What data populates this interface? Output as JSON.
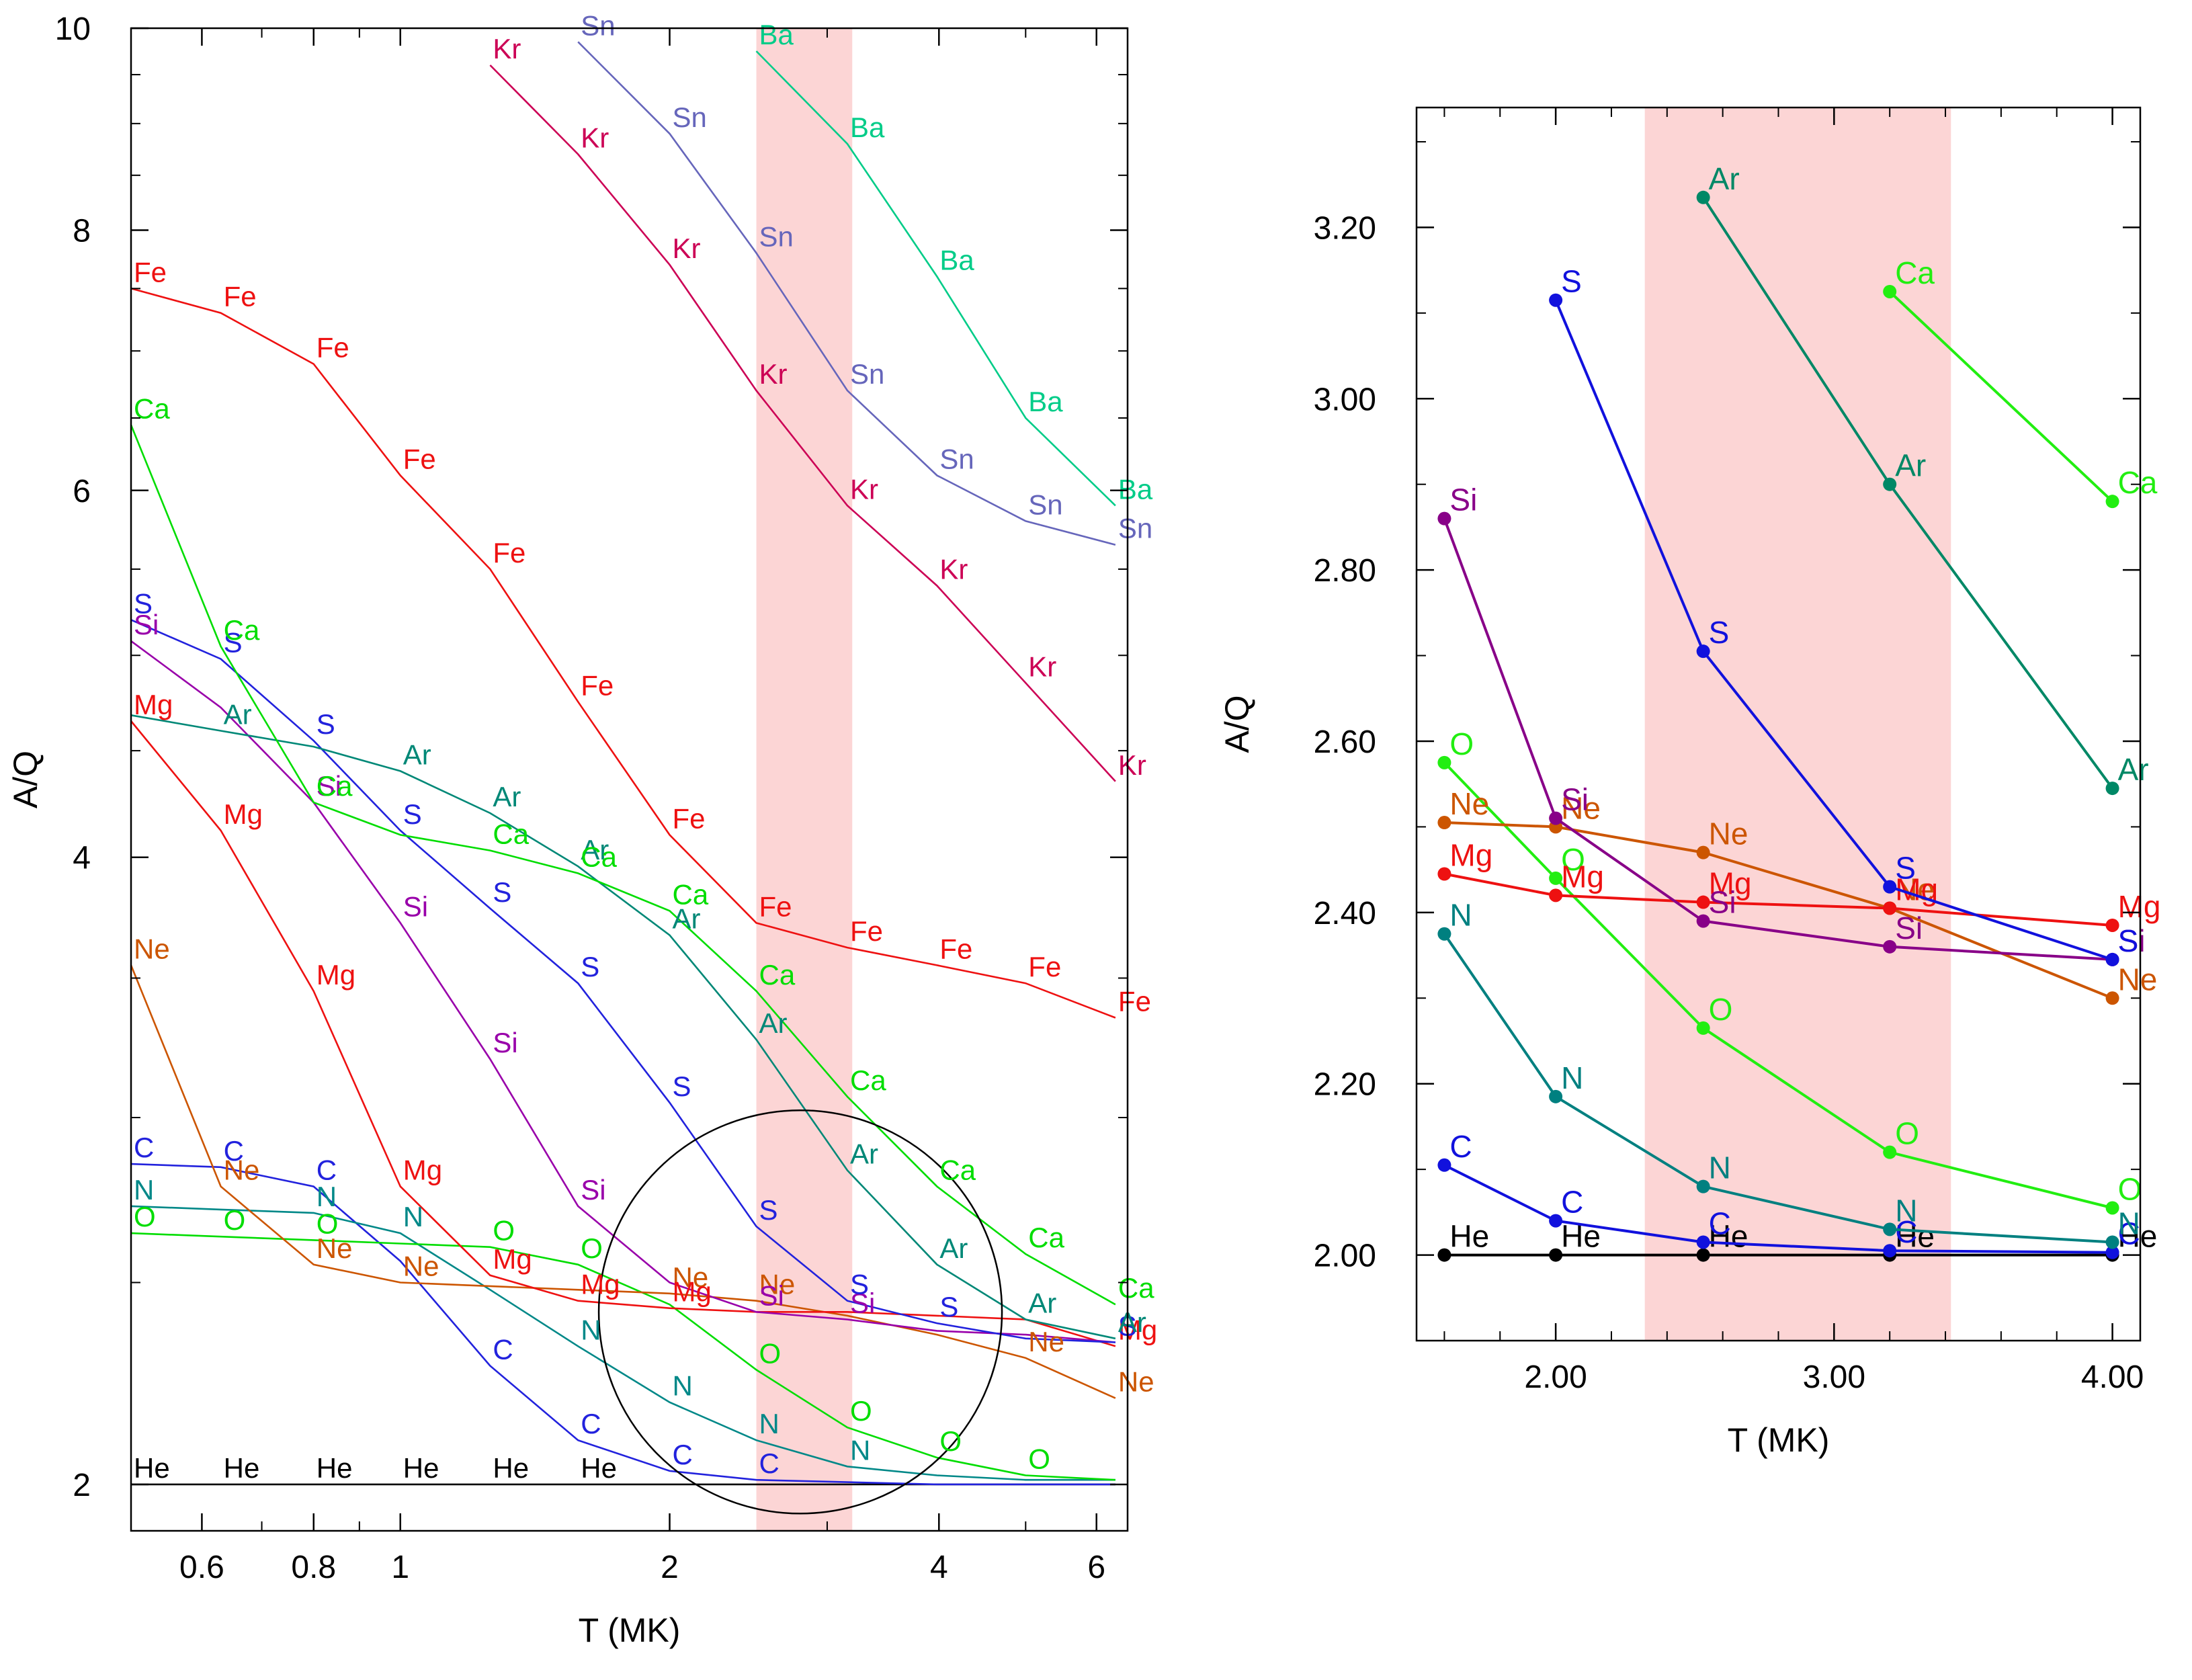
{
  "chart_data": [
    {
      "type": "line",
      "xlabel": "T (MK)",
      "ylabel": "A/Q",
      "x_scale": "log",
      "y_scale": "log",
      "xlim": [
        0.5,
        6.5
      ],
      "ylim": [
        1.9,
        10
      ],
      "x_ticks": [
        {
          "value": 0.6,
          "label": "0.6"
        },
        {
          "value": 0.8,
          "label": "0.8"
        },
        {
          "value": 1,
          "label": "1"
        },
        {
          "value": 2,
          "label": "2"
        },
        {
          "value": 4,
          "label": "4"
        },
        {
          "value": 6,
          "label": "6"
        }
      ],
      "y_ticks": [
        {
          "value": 2,
          "label": "2"
        },
        {
          "value": 4,
          "label": "4"
        },
        {
          "value": 6,
          "label": "6"
        },
        {
          "value": 8,
          "label": "8"
        },
        {
          "value": 10,
          "label": "10"
        }
      ],
      "shaded_band": {
        "x": [
          2.5,
          3.2
        ],
        "color": "#fcd5d5"
      },
      "circle": {
        "center": [
          2.8,
          2.42
        ],
        "color": "#000000"
      },
      "x": [
        0.5,
        0.63,
        0.8,
        1.0,
        1.26,
        1.58,
        2.0,
        2.5,
        3.16,
        3.98,
        5.0,
        6.3
      ],
      "series": [
        {
          "name": "He",
          "color": "#000000",
          "values": [
            2.0,
            2.0,
            2.0,
            2.0,
            2.0,
            2.0,
            2.0,
            2.0,
            2.0,
            2.0,
            2.0,
            2.0
          ]
        },
        {
          "name": "C",
          "color": "#2222dd",
          "values": [
            2.85,
            2.84,
            2.78,
            2.56,
            2.28,
            2.1,
            2.03,
            2.01,
            2.005,
            2.0,
            2.0,
            2.0
          ]
        },
        {
          "name": "N",
          "color": "#008888",
          "values": [
            2.72,
            2.71,
            2.7,
            2.64,
            2.48,
            2.33,
            2.19,
            2.1,
            2.04,
            2.02,
            2.01,
            2.01
          ]
        },
        {
          "name": "O",
          "color": "#00dd00",
          "values": [
            2.64,
            2.63,
            2.62,
            2.61,
            2.6,
            2.55,
            2.44,
            2.27,
            2.13,
            2.06,
            2.02,
            2.01
          ]
        },
        {
          "name": "Ne",
          "color": "#cc5500",
          "values": [
            3.55,
            2.78,
            2.55,
            2.5,
            2.49,
            2.48,
            2.47,
            2.45,
            2.41,
            2.36,
            2.3,
            2.2
          ]
        },
        {
          "name": "Mg",
          "color": "#ee1111",
          "values": [
            4.65,
            4.12,
            3.45,
            2.78,
            2.52,
            2.45,
            2.43,
            2.42,
            2.42,
            2.41,
            2.4,
            2.33
          ]
        },
        {
          "name": "Si",
          "color": "#9900aa",
          "values": [
            5.08,
            4.72,
            4.25,
            3.72,
            3.2,
            2.72,
            2.5,
            2.42,
            2.4,
            2.37,
            2.36,
            2.34
          ]
        },
        {
          "name": "S",
          "color": "#2222dd",
          "values": [
            5.2,
            4.98,
            4.55,
            4.12,
            3.78,
            3.48,
            3.05,
            2.66,
            2.45,
            2.39,
            2.35,
            2.34
          ]
        },
        {
          "name": "Ar",
          "color": "#008877",
          "values": [
            4.68,
            4.6,
            4.52,
            4.4,
            4.2,
            3.96,
            3.67,
            3.27,
            2.83,
            2.55,
            2.4,
            2.35
          ]
        },
        {
          "name": "Ca",
          "color": "#00dd00",
          "values": [
            6.45,
            5.05,
            4.25,
            4.1,
            4.03,
            3.93,
            3.77,
            3.45,
            3.07,
            2.78,
            2.58,
            2.44
          ]
        },
        {
          "name": "Fe",
          "color": "#ee1111",
          "values": [
            7.5,
            7.3,
            6.9,
            6.1,
            5.5,
            4.75,
            4.1,
            3.72,
            3.62,
            3.55,
            3.48,
            3.35
          ]
        },
        {
          "name": "Kr",
          "color": "#cc0055",
          "values": [
            null,
            null,
            null,
            null,
            9.6,
            8.7,
            7.7,
            6.7,
            5.9,
            5.4,
            4.85,
            4.35
          ]
        },
        {
          "name": "Sn",
          "color": "#6666bb",
          "values": [
            null,
            null,
            null,
            null,
            null,
            9.85,
            8.9,
            7.8,
            6.7,
            6.1,
            5.8,
            5.65
          ]
        },
        {
          "name": "Ba",
          "color": "#00cc88",
          "values": [
            null,
            null,
            null,
            null,
            null,
            null,
            null,
            9.75,
            8.8,
            7.6,
            6.5,
            5.9
          ]
        }
      ],
      "point_labels": [
        {
          "series": "He",
          "x": [
            0.5,
            0.63,
            0.8,
            1.0,
            1.26,
            1.58
          ],
          "y": [
            2.0,
            2.0,
            2.0,
            2.0,
            2.0,
            2.0
          ]
        },
        {
          "series": "C",
          "x": [
            0.5,
            0.63,
            0.8,
            1.26,
            1.58,
            2.0,
            2.5
          ],
          "y": [
            2.85,
            2.84,
            2.78,
            2.28,
            2.1,
            2.03,
            2.01
          ]
        },
        {
          "series": "N",
          "x": [
            0.5,
            0.8,
            1.0,
            1.58,
            2.0,
            2.5,
            3.16
          ],
          "y": [
            2.72,
            2.7,
            2.64,
            2.33,
            2.19,
            2.1,
            2.04
          ]
        },
        {
          "series": "O",
          "x": [
            0.5,
            0.63,
            0.8,
            1.26,
            1.58,
            2.5,
            3.16,
            3.98,
            5.0
          ],
          "y": [
            2.64,
            2.63,
            2.62,
            2.6,
            2.55,
            2.27,
            2.13,
            2.06,
            2.02
          ]
        },
        {
          "series": "Ne",
          "x": [
            0.5,
            0.63,
            0.8,
            1.0,
            2.0,
            2.5,
            5.0,
            6.3
          ],
          "y": [
            3.55,
            2.78,
            2.55,
            2.5,
            2.47,
            2.45,
            2.3,
            2.2
          ]
        },
        {
          "series": "Mg",
          "x": [
            0.5,
            0.63,
            0.8,
            1.0,
            1.26,
            1.58,
            2.0,
            6.3
          ],
          "y": [
            4.65,
            4.12,
            3.45,
            2.78,
            2.52,
            2.45,
            2.43,
            2.33
          ]
        },
        {
          "series": "Si",
          "x": [
            0.5,
            0.8,
            1.0,
            1.26,
            1.58,
            2.5,
            3.16
          ],
          "y": [
            5.08,
            4.25,
            3.72,
            3.2,
            2.72,
            2.42,
            2.4
          ]
        },
        {
          "series": "S",
          "x": [
            0.5,
            0.63,
            0.8,
            1.0,
            1.26,
            1.58,
            2.0,
            2.5,
            3.16,
            3.98,
            6.3
          ],
          "y": [
            5.2,
            4.98,
            4.55,
            4.12,
            3.78,
            3.48,
            3.05,
            2.66,
            2.45,
            2.39,
            2.34
          ]
        },
        {
          "series": "Ar",
          "x": [
            0.63,
            1.0,
            1.26,
            1.58,
            2.0,
            2.5,
            3.16,
            3.98,
            5.0,
            6.3
          ],
          "y": [
            4.6,
            4.4,
            4.2,
            3.96,
            3.67,
            3.27,
            2.83,
            2.55,
            2.4,
            2.35
          ]
        },
        {
          "series": "Ca",
          "x": [
            0.5,
            0.63,
            0.8,
            1.26,
            1.58,
            2.0,
            2.5,
            3.16,
            3.98,
            5.0,
            6.3
          ],
          "y": [
            6.45,
            5.05,
            4.25,
            4.03,
            3.93,
            3.77,
            3.45,
            3.07,
            2.78,
            2.58,
            2.44
          ]
        },
        {
          "series": "Fe",
          "x": [
            0.5,
            0.63,
            0.8,
            1.0,
            1.26,
            1.58,
            2.0,
            2.5,
            3.16,
            3.98,
            5.0,
            6.3
          ],
          "y": [
            7.5,
            7.3,
            6.9,
            6.1,
            5.5,
            4.75,
            4.1,
            3.72,
            3.62,
            3.55,
            3.48,
            3.35
          ]
        },
        {
          "series": "Kr",
          "x": [
            1.26,
            1.58,
            2.0,
            2.5,
            3.16,
            3.98,
            5.0,
            6.3
          ],
          "y": [
            9.6,
            8.7,
            7.7,
            6.7,
            5.9,
            5.4,
            4.85,
            4.35
          ]
        },
        {
          "series": "Sn",
          "x": [
            1.58,
            2.0,
            2.5,
            3.16,
            3.98,
            5.0,
            6.3
          ],
          "y": [
            9.85,
            8.9,
            7.8,
            6.7,
            6.1,
            5.8,
            5.65
          ]
        },
        {
          "series": "Ba",
          "x": [
            2.5,
            3.16,
            3.98,
            5.0,
            6.3
          ],
          "y": [
            9.75,
            8.8,
            7.6,
            6.5,
            5.9
          ]
        }
      ]
    },
    {
      "type": "line",
      "xlabel": "T (MK)",
      "ylabel": "A/Q",
      "x_scale": "linear",
      "y_scale": "linear",
      "xlim": [
        1.5,
        4.1
      ],
      "ylim": [
        1.9,
        3.34
      ],
      "x_ticks": [
        {
          "value": 2.0,
          "label": "2.00"
        },
        {
          "value": 3.0,
          "label": "3.00"
        },
        {
          "value": 4.0,
          "label": "4.00"
        }
      ],
      "y_ticks": [
        {
          "value": 2.0,
          "label": "2.00"
        },
        {
          "value": 2.2,
          "label": "2.20"
        },
        {
          "value": 2.4,
          "label": "2.40"
        },
        {
          "value": 2.6,
          "label": "2.60"
        },
        {
          "value": 2.8,
          "label": "2.80"
        },
        {
          "value": 3.0,
          "label": "3.00"
        },
        {
          "value": 3.2,
          "label": "3.20"
        }
      ],
      "shaded_band": {
        "x": [
          2.32,
          3.42
        ],
        "color": "#fcd5d5"
      },
      "series": [
        {
          "name": "He",
          "color": "#000000",
          "points": [
            [
              1.6,
              2.0
            ],
            [
              2.0,
              2.0
            ],
            [
              2.53,
              2.0
            ],
            [
              3.2,
              2.0
            ],
            [
              4.0,
              2.0
            ]
          ]
        },
        {
          "name": "C",
          "color": "#1111dd",
          "points": [
            [
              1.6,
              2.105
            ],
            [
              2.0,
              2.04
            ],
            [
              2.53,
              2.015
            ],
            [
              3.2,
              2.005
            ],
            [
              4.0,
              2.003
            ]
          ]
        },
        {
          "name": "N",
          "color": "#008080",
          "points": [
            [
              1.6,
              2.375
            ],
            [
              2.0,
              2.185
            ],
            [
              2.53,
              2.08
            ],
            [
              3.2,
              2.03
            ],
            [
              4.0,
              2.015
            ]
          ]
        },
        {
          "name": "O",
          "color": "#22ee11",
          "points": [
            [
              1.6,
              2.575
            ],
            [
              2.0,
              2.44
            ],
            [
              2.53,
              2.265
            ],
            [
              3.2,
              2.12
            ],
            [
              4.0,
              2.055
            ]
          ]
        },
        {
          "name": "Ne",
          "color": "#cc5500",
          "points": [
            [
              1.6,
              2.505
            ],
            [
              2.0,
              2.5
            ],
            [
              2.53,
              2.47
            ],
            [
              3.2,
              2.405
            ],
            [
              4.0,
              2.3
            ]
          ]
        },
        {
          "name": "Mg",
          "color": "#ee1111",
          "points": [
            [
              1.6,
              2.445
            ],
            [
              2.0,
              2.42
            ],
            [
              2.53,
              2.412
            ],
            [
              3.2,
              2.405
            ],
            [
              4.0,
              2.385
            ]
          ]
        },
        {
          "name": "Si",
          "color": "#880088",
          "points": [
            [
              1.6,
              2.86
            ],
            [
              2.0,
              2.51
            ],
            [
              2.53,
              2.39
            ],
            [
              3.2,
              2.36
            ],
            [
              4.0,
              2.345
            ]
          ]
        },
        {
          "name": "S",
          "color": "#1111dd",
          "points": [
            [
              2.0,
              3.115
            ],
            [
              2.53,
              2.705
            ],
            [
              3.2,
              2.43
            ],
            [
              4.0,
              2.345
            ]
          ]
        },
        {
          "name": "Ar",
          "color": "#008866",
          "points": [
            [
              2.53,
              3.235
            ],
            [
              3.2,
              2.9
            ],
            [
              4.0,
              2.545
            ]
          ]
        },
        {
          "name": "Ca",
          "color": "#22ee11",
          "points": [
            [
              3.2,
              3.125
            ],
            [
              4.0,
              2.88
            ]
          ]
        }
      ]
    }
  ]
}
